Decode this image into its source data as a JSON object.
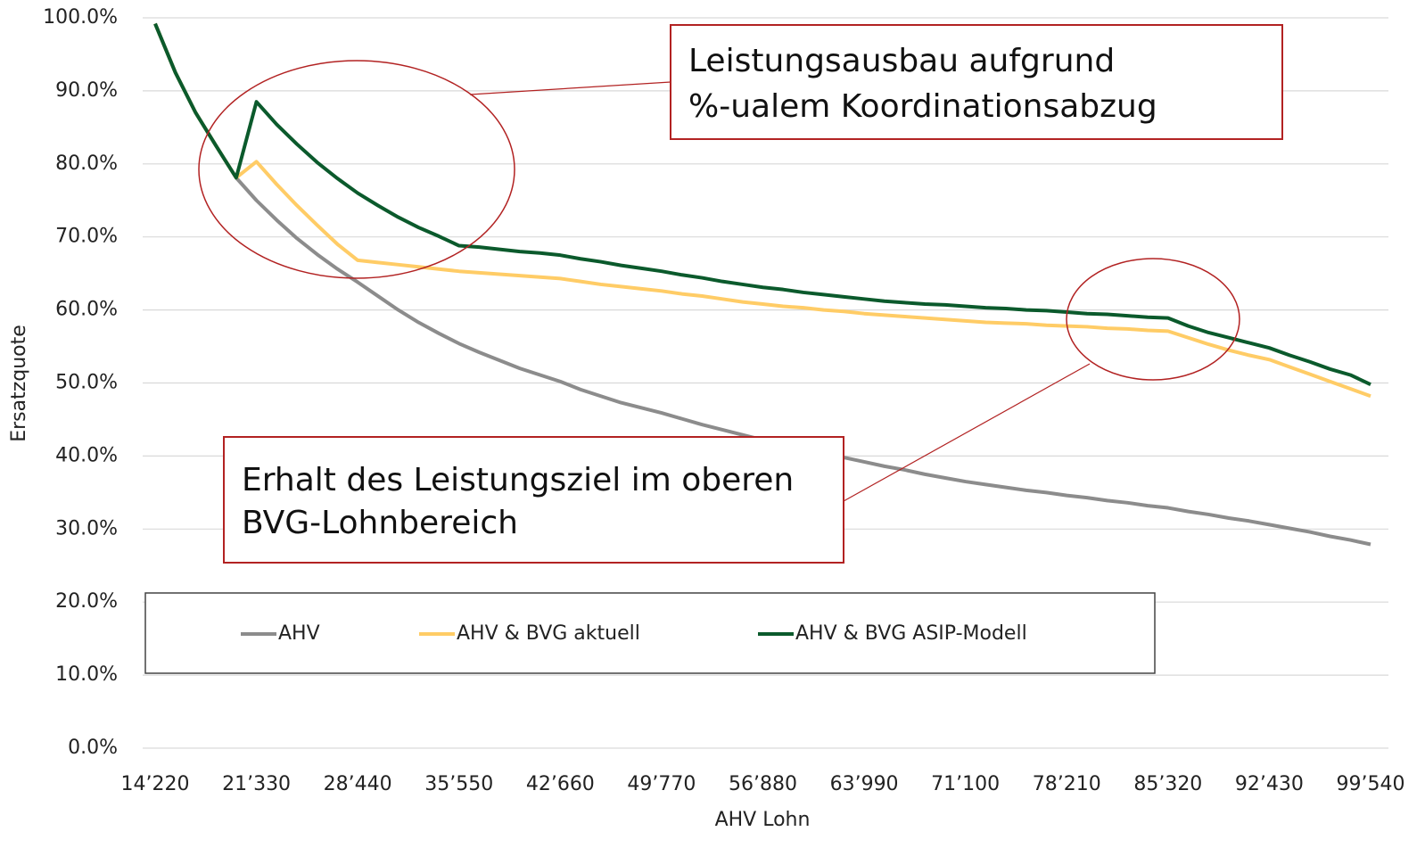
{
  "chart_data": {
    "type": "line",
    "x_label": "AHV Lohn",
    "y_label": "Ersatzquote",
    "x": [
      14220,
      15642,
      17064,
      18486,
      19908,
      21330,
      22752,
      24174,
      25596,
      27018,
      28440,
      29862,
      31284,
      32706,
      34128,
      35550,
      36972,
      38394,
      39816,
      41238,
      42660,
      44082,
      45504,
      46926,
      48348,
      49770,
      51192,
      52614,
      54036,
      55458,
      56880,
      58302,
      59724,
      61146,
      62568,
      63990,
      65412,
      66834,
      68256,
      69678,
      71100,
      72522,
      73944,
      75366,
      76788,
      78210,
      79632,
      81054,
      82476,
      83898,
      85320,
      86742,
      88164,
      89586,
      91008,
      92430,
      93852,
      95274,
      96696,
      98118,
      99540
    ],
    "series": [
      {
        "name": "AHV",
        "color": "#8c8c8c",
        "values": [
          99.2,
          92.5,
          87,
          82.5,
          78.1,
          75.0,
          72.3,
          69.8,
          67.6,
          65.6,
          63.8,
          61.9,
          60.0,
          58.3,
          56.8,
          55.4,
          54.2,
          53.1,
          52.0,
          51.1,
          50.2,
          49.1,
          48.2,
          47.3,
          46.6,
          45.9,
          45.1,
          44.3,
          43.6,
          42.9,
          42.2,
          41.6,
          41.0,
          40.4,
          39.8,
          39.2,
          38.6,
          38.1,
          37.5,
          37.0,
          36.5,
          36.1,
          35.7,
          35.3,
          35.0,
          34.6,
          34.3,
          33.9,
          33.6,
          33.2,
          32.9,
          32.4,
          32.0,
          31.5,
          31.1,
          30.6,
          30.1,
          29.6,
          29.0,
          28.5,
          27.9
        ]
      },
      {
        "name": "AHV & BVG aktuell",
        "color": "#ffcc66",
        "values": [
          99.2,
          92.5,
          87,
          82.5,
          78.1,
          80.3,
          77.2,
          74.3,
          71.6,
          69.0,
          66.8,
          66.5,
          66.2,
          65.9,
          65.6,
          65.3,
          65.1,
          64.9,
          64.7,
          64.5,
          64.3,
          63.9,
          63.5,
          63.2,
          62.9,
          62.6,
          62.2,
          61.9,
          61.5,
          61.1,
          60.8,
          60.5,
          60.3,
          60.0,
          59.8,
          59.5,
          59.3,
          59.1,
          58.9,
          58.7,
          58.5,
          58.3,
          58.2,
          58.1,
          57.9,
          57.8,
          57.7,
          57.5,
          57.4,
          57.2,
          57.1,
          56.2,
          55.3,
          54.5,
          53.8,
          53.2,
          52.2,
          51.2,
          50.2,
          49.2,
          48.2
        ]
      },
      {
        "name": "AHV & BVG ASIP-Modell",
        "color": "#0b5a2c",
        "values": [
          99.2,
          92.5,
          87,
          82.5,
          78.1,
          88.5,
          85.4,
          82.7,
          80.2,
          78.0,
          76.0,
          74.3,
          72.7,
          71.3,
          70.1,
          68.8,
          68.6,
          68.3,
          68.0,
          67.8,
          67.5,
          67.0,
          66.6,
          66.1,
          65.7,
          65.3,
          64.8,
          64.4,
          63.9,
          63.5,
          63.1,
          62.8,
          62.4,
          62.1,
          61.8,
          61.5,
          61.2,
          61.0,
          60.8,
          60.7,
          60.5,
          60.3,
          60.2,
          60.0,
          59.9,
          59.7,
          59.5,
          59.4,
          59.2,
          59.0,
          58.9,
          57.8,
          56.9,
          56.2,
          55.5,
          54.8,
          53.8,
          52.9,
          51.9,
          51.1,
          49.8
        ]
      }
    ],
    "xlim": [
      14220,
      99540
    ],
    "xticks": [
      {
        "value": 14220,
        "label": "14’220"
      },
      {
        "value": 21330,
        "label": "21’330"
      },
      {
        "value": 28440,
        "label": "28’440"
      },
      {
        "value": 35550,
        "label": "35’550"
      },
      {
        "value": 42660,
        "label": "42’660"
      },
      {
        "value": 49770,
        "label": "49’770"
      },
      {
        "value": 56880,
        "label": "56’880"
      },
      {
        "value": 63990,
        "label": "63’990"
      },
      {
        "value": 71100,
        "label": "71’100"
      },
      {
        "value": 78210,
        "label": "78’210"
      },
      {
        "value": 85320,
        "label": "85’320"
      },
      {
        "value": 92430,
        "label": "92’430"
      },
      {
        "value": 99540,
        "label": "99’540"
      }
    ],
    "ylim": [
      0,
      100
    ],
    "yticks": [
      {
        "value": 0,
        "label": "0.0%"
      },
      {
        "value": 10,
        "label": "10.0%"
      },
      {
        "value": 20,
        "label": "20.0%"
      },
      {
        "value": 30,
        "label": "30.0%"
      },
      {
        "value": 40,
        "label": "40.0%"
      },
      {
        "value": 50,
        "label": "50.0%"
      },
      {
        "value": 60,
        "label": "60.0%"
      },
      {
        "value": 70,
        "label": "70.0%"
      },
      {
        "value": 80,
        "label": "80.0%"
      },
      {
        "value": 90,
        "label": "90.0%"
      },
      {
        "value": 100,
        "label": "100.0%"
      }
    ],
    "grid": true,
    "annotations": [
      {
        "lines": [
          "Leistungsausbau aufgrund",
          "%-ualem Koordinationsabzug"
        ]
      },
      {
        "lines": [
          "Erhalt des Leistungsziel im oberen",
          "BVG-Lohnbereich"
        ]
      }
    ]
  }
}
